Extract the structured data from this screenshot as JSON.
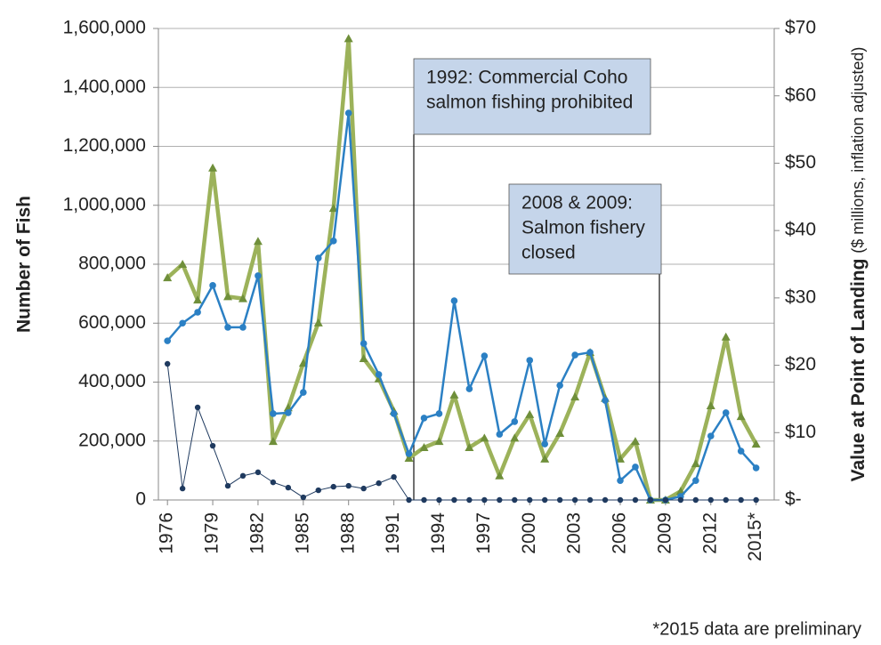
{
  "chart_data": {
    "type": "line",
    "y_label": "Number of Fish",
    "y2_label": "Value at Point of Landing",
    "y2_label_note": "($ millions, inflation adjusted)",
    "footnote": "*2015 data are preliminary",
    "annotations": [
      {
        "lines": [
          "1992: Commercial Coho",
          "salmon fishing prohibited"
        ]
      },
      {
        "lines": [
          "2008 & 2009:",
          "Salmon fishery",
          "closed"
        ]
      }
    ],
    "x": [
      1976,
      1977,
      1978,
      1979,
      1980,
      1981,
      1982,
      1983,
      1984,
      1985,
      1986,
      1987,
      1988,
      1989,
      1990,
      1991,
      1992,
      1993,
      1994,
      1995,
      1996,
      1997,
      1998,
      1999,
      2000,
      2001,
      2002,
      2003,
      2004,
      2005,
      2006,
      2007,
      2008,
      2009,
      2010,
      2011,
      2012,
      2013,
      2014,
      2015
    ],
    "xlim": [
      1975.4,
      2016.2
    ],
    "xticks": [
      1976,
      1979,
      1982,
      1985,
      1988,
      1991,
      1994,
      1997,
      2000,
      2003,
      2006,
      2009,
      2012,
      {
        "value": 2015,
        "label": "2015*"
      }
    ],
    "ylim": [
      0,
      1600000
    ],
    "yticks": [
      0,
      {
        "value": 200000,
        "label": "200,000"
      },
      {
        "value": 400000,
        "label": "400,000"
      },
      {
        "value": 600000,
        "label": "600,000"
      },
      {
        "value": 800000,
        "label": "800,000"
      },
      {
        "value": 1000000,
        "label": "1,000,000"
      },
      {
        "value": 1200000,
        "label": "1,200,000"
      },
      {
        "value": 1400000,
        "label": "1,400,000"
      },
      {
        "value": 1600000,
        "label": "1,600,000"
      }
    ],
    "y2lim": [
      0,
      70
    ],
    "y2ticks": [
      {
        "value": 0,
        "label": "$-"
      },
      {
        "value": 10,
        "label": "$10"
      },
      {
        "value": 20,
        "label": "$20"
      },
      {
        "value": 30,
        "label": "$30"
      },
      {
        "value": 40,
        "label": "$40"
      },
      {
        "value": 50,
        "label": "$50"
      },
      {
        "value": 60,
        "label": "$60"
      },
      {
        "value": 70,
        "label": "$70"
      }
    ],
    "grid": true,
    "series": [
      {
        "color": "#9cb25a",
        "marker_color": "#6f8f3a",
        "marker": "triangle",
        "width": 4.5,
        "axis": "y2",
        "values": [
          33.0,
          35.0,
          29.7,
          49.3,
          30.2,
          29.9,
          38.4,
          8.7,
          13.7,
          20.3,
          26.3,
          43.3,
          68.5,
          21.0,
          18.0,
          13.2,
          6.2,
          7.8,
          8.7,
          15.6,
          7.8,
          9.2,
          3.6,
          9.2,
          12.7,
          6.1,
          9.9,
          15.3,
          21.9,
          15.1,
          6.1,
          8.7,
          0,
          0,
          1.3,
          5.4,
          14.0,
          24.2,
          12.4,
          8.3
        ]
      },
      {
        "color": "#2b80c4",
        "marker_color": "#2b80c4",
        "marker": "circle",
        "width": 2.5,
        "axis": "y",
        "values": [
          540000,
          600000,
          637000,
          728000,
          586000,
          586000,
          761000,
          293000,
          296000,
          365000,
          821000,
          879000,
          1313000,
          531000,
          426000,
          293000,
          157000,
          278000,
          293000,
          676000,
          377000,
          489000,
          223000,
          266000,
          474000,
          190000,
          389000,
          492000,
          501000,
          338000,
          66000,
          112000,
          0,
          0,
          12000,
          66000,
          217000,
          296000,
          166000,
          109000
        ]
      },
      {
        "color": "#1f3a5f",
        "marker_color": "#1f3a5f",
        "marker": "dot",
        "width": 1,
        "axis": "y",
        "values": [
          462000,
          39000,
          314000,
          184000,
          48000,
          82000,
          94000,
          60000,
          42000,
          9000,
          33000,
          45000,
          48000,
          39000,
          57000,
          78000,
          0,
          0,
          0,
          0,
          0,
          0,
          0,
          0,
          0,
          0,
          0,
          0,
          0,
          0,
          0,
          0,
          0,
          0,
          0,
          0,
          0,
          0,
          0,
          0
        ]
      }
    ]
  }
}
